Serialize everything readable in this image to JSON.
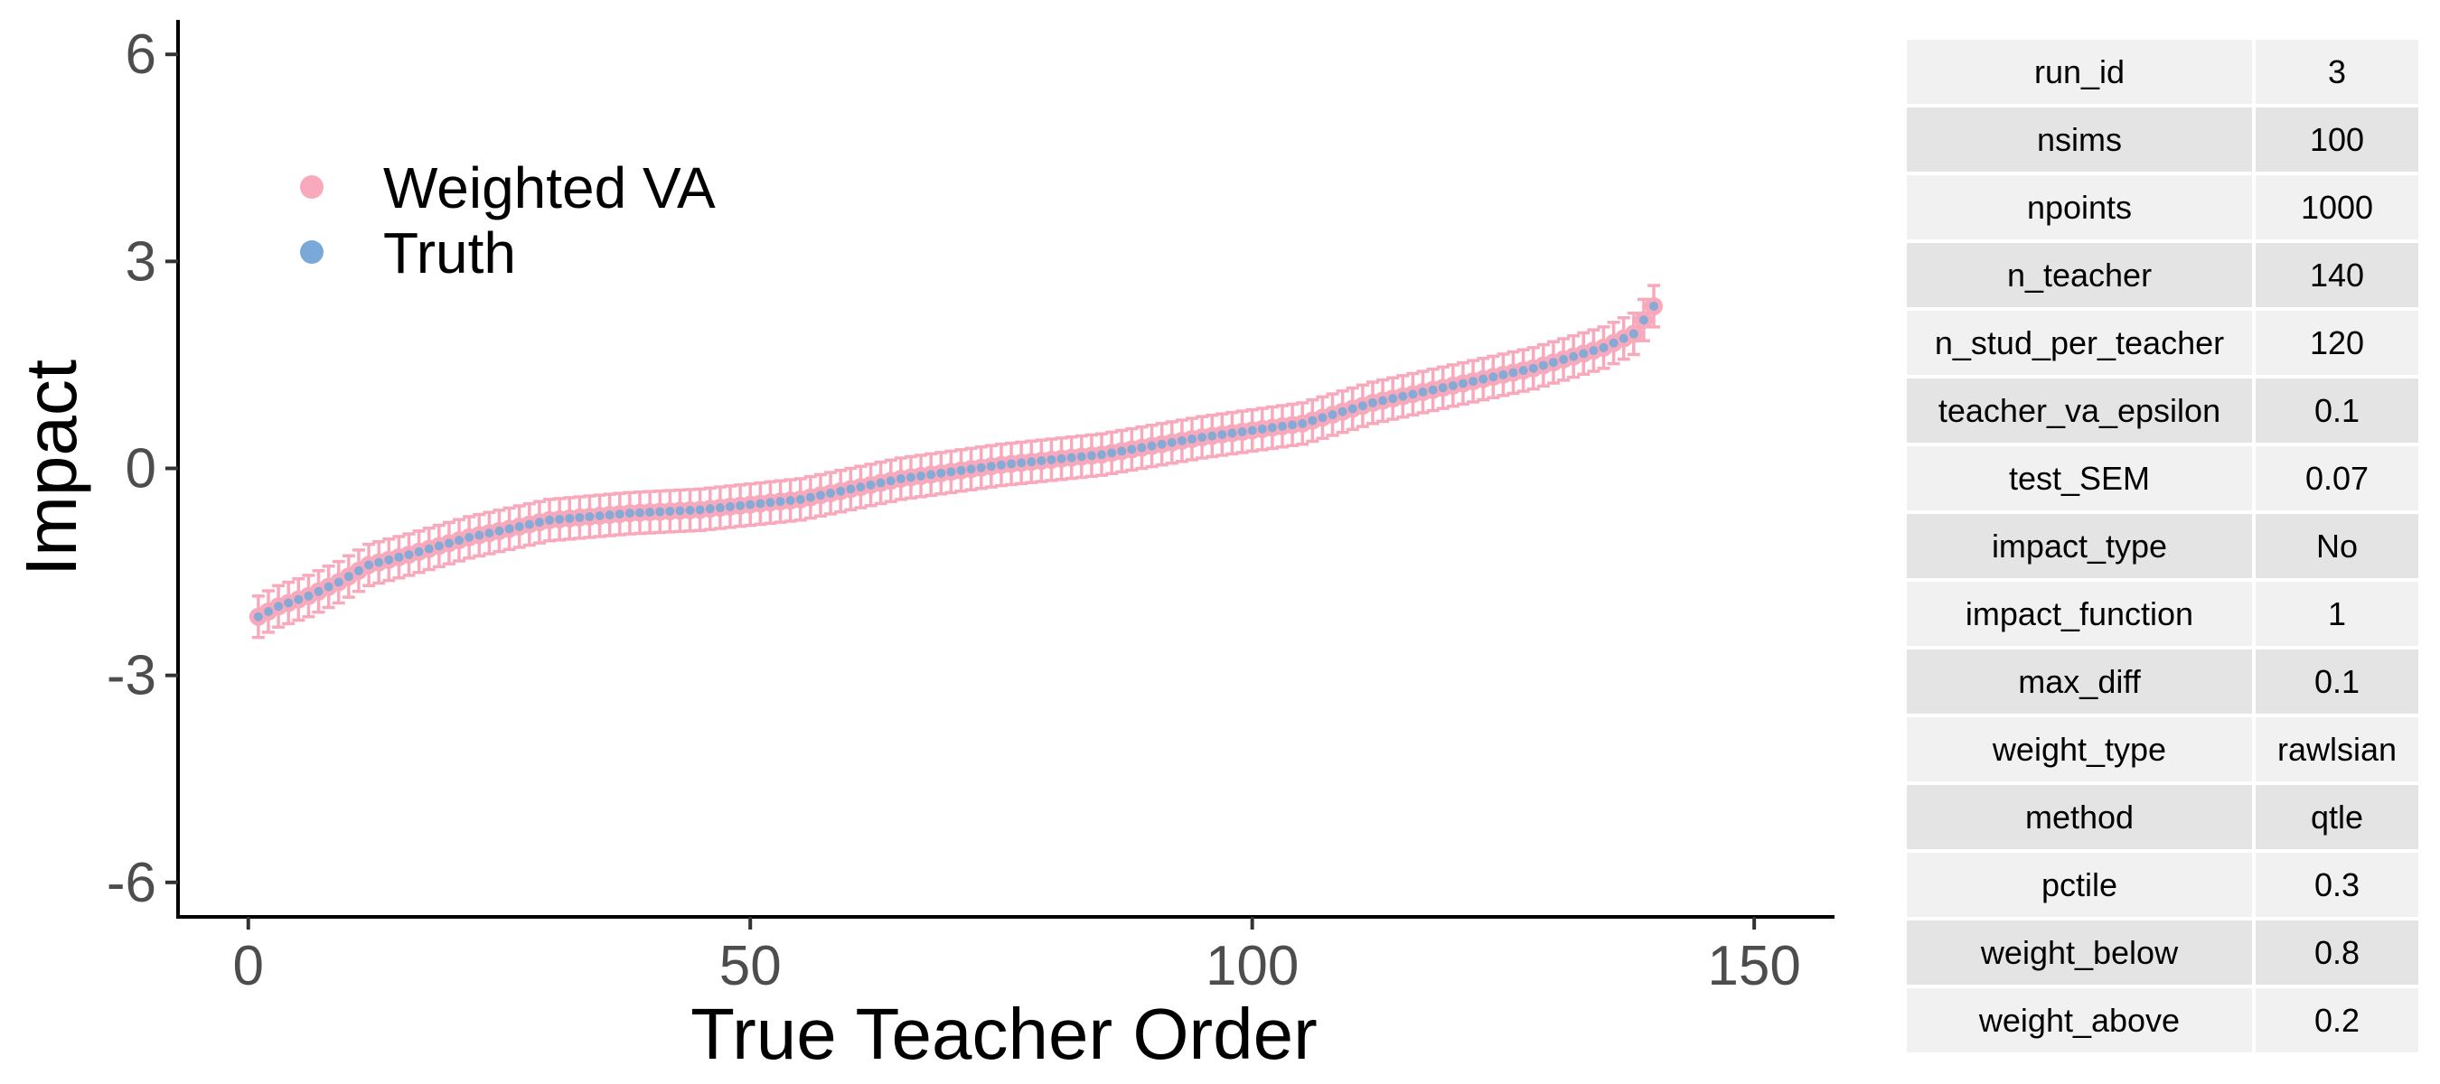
{
  "chart_data": {
    "type": "scatter",
    "title": "",
    "xlabel": "True Teacher Order",
    "ylabel": "Impact",
    "xlim": [
      -7,
      158
    ],
    "ylim": [
      -6.5,
      6.5
    ],
    "x_ticks": [
      0,
      50,
      100,
      150
    ],
    "y_ticks": [
      -6,
      -3,
      0,
      3,
      6
    ],
    "legend": {
      "placement": "top-left",
      "entries": [
        "Weighted VA",
        "Truth"
      ]
    },
    "series": [
      {
        "name": "Weighted VA",
        "color": "#f9a9bc",
        "error_bar_halfwidth": 0.3
      },
      {
        "name": "Truth",
        "color": "#7aa8d8"
      }
    ],
    "curve_anchors": [
      {
        "x": 1,
        "y": -2.15
      },
      {
        "x": 3,
        "y": -2.0
      },
      {
        "x": 6,
        "y": -1.85
      },
      {
        "x": 9,
        "y": -1.65
      },
      {
        "x": 12,
        "y": -1.4
      },
      {
        "x": 16,
        "y": -1.25
      },
      {
        "x": 22,
        "y": -1.0
      },
      {
        "x": 30,
        "y": -0.75
      },
      {
        "x": 38,
        "y": -0.65
      },
      {
        "x": 45,
        "y": -0.6
      },
      {
        "x": 55,
        "y": -0.45
      },
      {
        "x": 65,
        "y": -0.15
      },
      {
        "x": 75,
        "y": 0.05
      },
      {
        "x": 85,
        "y": 0.2
      },
      {
        "x": 95,
        "y": 0.45
      },
      {
        "x": 105,
        "y": 0.65
      },
      {
        "x": 112,
        "y": 0.95
      },
      {
        "x": 120,
        "y": 1.2
      },
      {
        "x": 128,
        "y": 1.45
      },
      {
        "x": 135,
        "y": 1.75
      },
      {
        "x": 138,
        "y": 1.95
      },
      {
        "x": 140,
        "y": 2.35
      }
    ],
    "n_points": 140
  },
  "param_table": [
    {
      "name": "run_id",
      "value": "3"
    },
    {
      "name": "nsims",
      "value": "100"
    },
    {
      "name": "npoints",
      "value": "1000"
    },
    {
      "name": "n_teacher",
      "value": "140"
    },
    {
      "name": "n_stud_per_teacher",
      "value": "120"
    },
    {
      "name": "teacher_va_epsilon",
      "value": "0.1"
    },
    {
      "name": "test_SEM",
      "value": "0.07"
    },
    {
      "name": "impact_type",
      "value": "No"
    },
    {
      "name": "impact_function",
      "value": "1"
    },
    {
      "name": "max_diff",
      "value": "0.1"
    },
    {
      "name": "weight_type",
      "value": "rawlsian"
    },
    {
      "name": "method",
      "value": "qtle"
    },
    {
      "name": "pctile",
      "value": "0.3"
    },
    {
      "name": "weight_below",
      "value": "0.8"
    },
    {
      "name": "weight_above",
      "value": "0.2"
    }
  ]
}
